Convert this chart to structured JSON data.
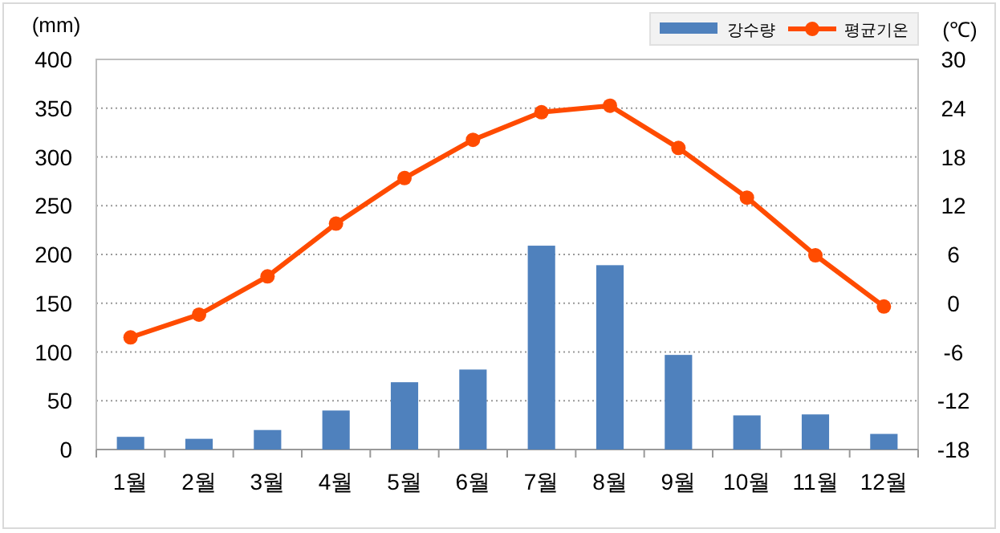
{
  "chart_data": {
    "type": "bar",
    "ylabel": "(mm)",
    "y2label": "(℃)",
    "categories": [
      "1월",
      "2월",
      "3월",
      "4월",
      "5월",
      "6월",
      "7월",
      "8월",
      "9월",
      "10월",
      "11월",
      "12월"
    ],
    "series": [
      {
        "name": "강수량",
        "color": "#4f81bd",
        "values": [
          13,
          11,
          20,
          40,
          69,
          82,
          209,
          189,
          97,
          35,
          36,
          16
        ]
      },
      {
        "name": "평균기온",
        "type": "line",
        "axis": "y2",
        "color": "#ff4b00",
        "marker": "circle",
        "values": [
          -4.2,
          -1.4,
          3.3,
          9.8,
          15.4,
          20.1,
          23.5,
          24.3,
          19.1,
          13.0,
          5.9,
          -0.4
        ]
      }
    ],
    "ylim": [
      0,
      400
    ],
    "yticks": [
      0,
      50,
      100,
      150,
      200,
      250,
      300,
      350,
      400
    ],
    "y2lim": [
      -18,
      30
    ],
    "y2ticks": [
      -18,
      -12,
      -6,
      0,
      6,
      12,
      18,
      24,
      30
    ],
    "grid": "y",
    "legend": "top right"
  }
}
